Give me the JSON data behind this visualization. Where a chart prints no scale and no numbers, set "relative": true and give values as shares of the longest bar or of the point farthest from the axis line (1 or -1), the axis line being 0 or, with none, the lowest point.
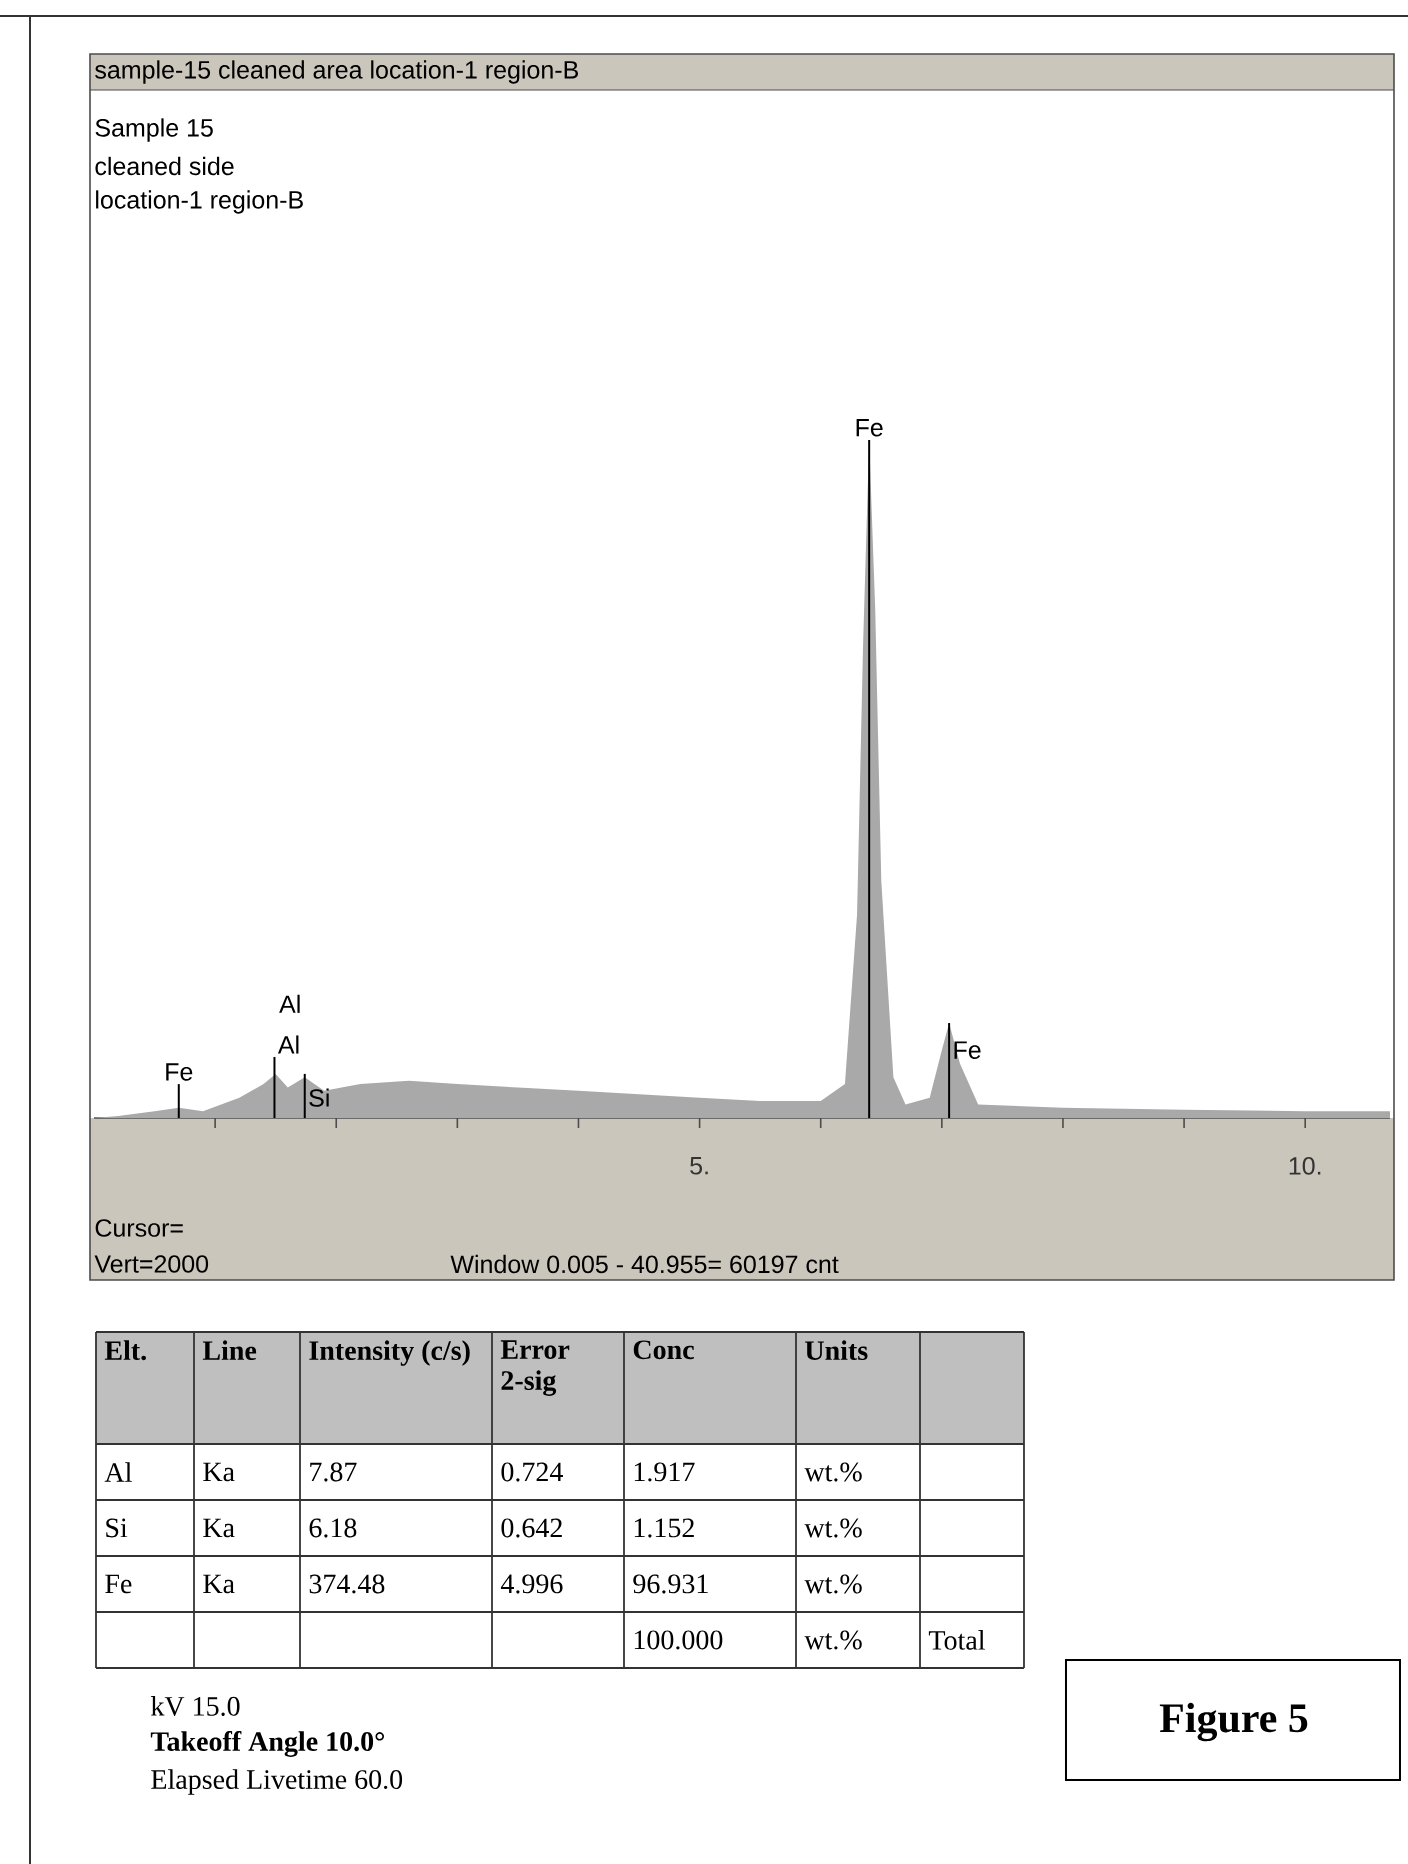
{
  "chart_data": {
    "type": "area",
    "title": "sample-15 cleaned area location-1 region-B",
    "relative": true,
    "color": "#a9a9a9",
    "marker": "none",
    "tick_labels": "x",
    "ref_lines": [
      {
        "axis": "x",
        "value": 0.7,
        "label": "Fe",
        "color": "#000000"
      },
      {
        "axis": "x",
        "value": 1.49,
        "label": "Al",
        "color": "#000000"
      },
      {
        "axis": "x",
        "value": 1.74,
        "label": "Si",
        "color": "#000000"
      },
      {
        "axis": "x",
        "value": 6.4,
        "label": "Fe",
        "color": "#000000"
      },
      {
        "axis": "x",
        "value": 7.06,
        "label": "Fe",
        "color": "#000000"
      }
    ],
    "xlim": [
      0,
      10.7
    ],
    "xticks": [
      {
        "value": 1,
        "label": null
      },
      {
        "value": 2,
        "label": null
      },
      {
        "value": 3,
        "label": null
      },
      {
        "value": 4,
        "label": null
      },
      {
        "value": 5,
        "label": "5."
      },
      {
        "value": 6,
        "label": null
      },
      {
        "value": 7,
        "label": null
      },
      {
        "value": 8,
        "label": null
      },
      {
        "value": 9,
        "label": null
      },
      {
        "value": 10,
        "label": "10."
      }
    ],
    "x": [
      0.0,
      0.2,
      0.5,
      0.7,
      0.9,
      1.2,
      1.4,
      1.5,
      1.6,
      1.74,
      1.9,
      2.2,
      2.6,
      3.0,
      3.5,
      4.0,
      4.5,
      5.0,
      5.5,
      6.0,
      6.2,
      6.3,
      6.35,
      6.4,
      6.45,
      6.5,
      6.6,
      6.7,
      6.9,
      7.0,
      7.06,
      7.15,
      7.3,
      8.0,
      9.0,
      10.0,
      10.7
    ],
    "values": [
      0.0,
      0.003,
      0.01,
      0.015,
      0.01,
      0.03,
      0.05,
      0.065,
      0.045,
      0.06,
      0.04,
      0.05,
      0.055,
      0.05,
      0.045,
      0.04,
      0.035,
      0.03,
      0.025,
      0.025,
      0.05,
      0.3,
      0.7,
      1.0,
      0.75,
      0.35,
      0.06,
      0.02,
      0.03,
      0.1,
      0.14,
      0.08,
      0.02,
      0.015,
      0.012,
      0.01,
      0.01
    ],
    "annotations": [
      "Sample 15",
      "cleaned side",
      "location-1 region-B",
      "Cursor=",
      "Vert=2000",
      "Window 0.005 - 40.955=   60197 cnt",
      "Elt.",
      "Line",
      "Intensity (c/s)",
      "Error 2-sig",
      "Conc",
      "Units",
      "Al",
      "Ka",
      "7.87",
      "0.724",
      "1.917",
      "wt.%",
      "Si",
      "Ka",
      "6.18",
      "0.642",
      "1.152",
      "wt.%",
      "Fe",
      "Ka",
      "374.48",
      "4.996",
      "96.931",
      "wt.%",
      "100.000",
      "wt.%",
      "Total",
      "kV  15.0",
      "Takeoff Angle  10.0°",
      "Elapsed Livetime 60.0",
      "Figure 5",
      "Al"
    ]
  }
}
